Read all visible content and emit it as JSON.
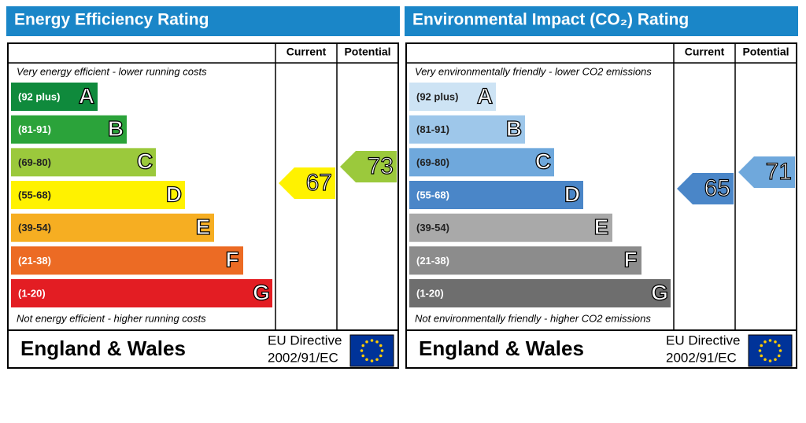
{
  "panels": [
    {
      "title": "Energy Efficiency Rating",
      "current_label": "Current",
      "potential_label": "Potential",
      "top_note": "Very energy efficient - lower running costs",
      "bottom_note": "Not energy efficient - higher running costs",
      "bands": [
        {
          "range": "(92 plus)",
          "letter": "A",
          "color": "#0f8a3c"
        },
        {
          "range": "(81-91)",
          "letter": "B",
          "color": "#2ba33a"
        },
        {
          "range": "(69-80)",
          "letter": "C",
          "color": "#9bc93c"
        },
        {
          "range": "(55-68)",
          "letter": "D",
          "color": "#fff200"
        },
        {
          "range": "(39-54)",
          "letter": "E",
          "color": "#f6ae22"
        },
        {
          "range": "(21-38)",
          "letter": "F",
          "color": "#ec6b24"
        },
        {
          "range": "(1-20)",
          "letter": "G",
          "color": "#e31d23"
        }
      ],
      "current": 67,
      "potential": 73,
      "region": "England & Wales",
      "directive": "EU Directive",
      "directive_code": "2002/91/EC"
    },
    {
      "title": "Environmental Impact (CO₂) Rating",
      "current_label": "Current",
      "potential_label": "Potential",
      "top_note": "Very environmentally friendly - lower CO2 emissions",
      "bottom_note": "Not environmentally friendly - higher CO2 emissions",
      "bands": [
        {
          "range": "(92 plus)",
          "letter": "A",
          "color": "#cde3f4"
        },
        {
          "range": "(81-91)",
          "letter": "B",
          "color": "#9ec7ea"
        },
        {
          "range": "(69-80)",
          "letter": "C",
          "color": "#6fa8dc"
        },
        {
          "range": "(55-68)",
          "letter": "D",
          "color": "#4a86c8"
        },
        {
          "range": "(39-54)",
          "letter": "E",
          "color": "#a9a9a9"
        },
        {
          "range": "(21-38)",
          "letter": "F",
          "color": "#8c8c8c"
        },
        {
          "range": "(1-20)",
          "letter": "G",
          "color": "#6e6e6e"
        }
      ],
      "current": 65,
      "potential": 71,
      "region": "England & Wales",
      "directive": "EU Directive",
      "directive_code": "2002/91/EC"
    }
  ]
}
